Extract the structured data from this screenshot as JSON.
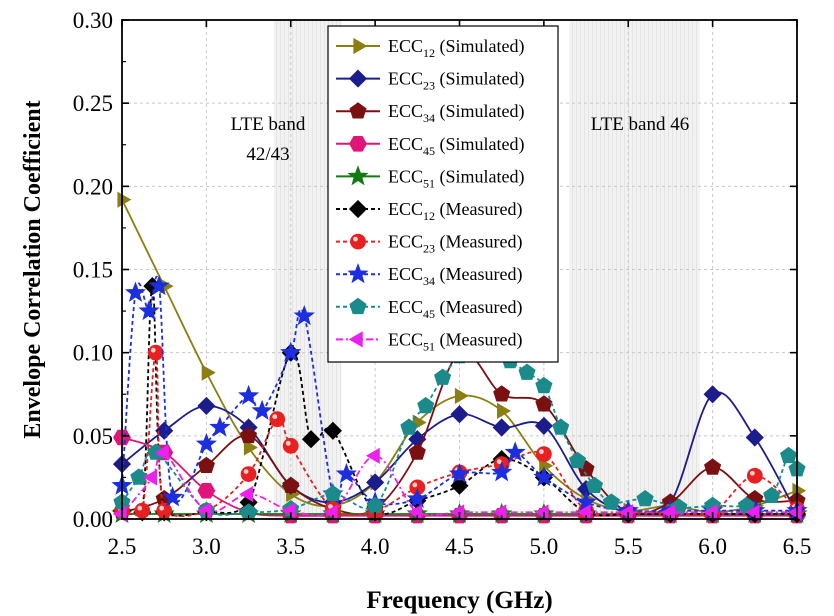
{
  "chart_data": {
    "type": "line",
    "title": "",
    "xlabel": "Frequency (GHz)",
    "ylabel": "Envelope Correlation Coefficient",
    "xlim": [
      2.5,
      6.5
    ],
    "ylim": [
      0.0,
      0.3
    ],
    "xticks": [
      "2.5",
      "3.0",
      "3.5",
      "4.0",
      "4.5",
      "5.0",
      "5.5",
      "6.0",
      "6.5"
    ],
    "yticks": [
      "0.00",
      "0.05",
      "0.10",
      "0.15",
      "0.20",
      "0.25",
      "0.30"
    ],
    "grid": true,
    "legend_position": "top-center",
    "bands": [
      {
        "label_line1": "LTE band",
        "label_line2": "42/43",
        "from": 3.4,
        "to": 3.8
      },
      {
        "label_line1": "LTE band 46",
        "label_line2": "",
        "from": 5.15,
        "to": 5.925
      }
    ],
    "series": [
      {
        "name_main": "ECC",
        "name_sub": "12",
        "name_suffix": " (Simulated)",
        "color": "#8a7f10",
        "dash": "solid",
        "marker": "triangle-right",
        "x": [
          2.5,
          2.75,
          3.0,
          3.25,
          3.5,
          3.75,
          4.0,
          4.25,
          4.5,
          4.75,
          5.0,
          5.25,
          5.5,
          5.75,
          6.0,
          6.25,
          6.5
        ],
        "y": [
          0.192,
          0.14,
          0.088,
          0.043,
          0.015,
          0.008,
          0.022,
          0.058,
          0.074,
          0.065,
          0.032,
          0.012,
          0.005,
          0.008,
          0.004,
          0.008,
          0.017
        ]
      },
      {
        "name_main": "ECC",
        "name_sub": "23",
        "name_suffix": " (Simulated)",
        "color": "#1c1c8c",
        "dash": "solid",
        "marker": "diamond",
        "x": [
          2.5,
          2.75,
          3.0,
          3.25,
          3.5,
          3.75,
          4.0,
          4.25,
          4.5,
          4.75,
          5.0,
          5.25,
          5.5,
          5.75,
          6.0,
          6.25,
          6.5
        ],
        "y": [
          0.033,
          0.053,
          0.068,
          0.055,
          0.02,
          0.01,
          0.022,
          0.048,
          0.063,
          0.055,
          0.056,
          0.018,
          0.004,
          0.01,
          0.075,
          0.049,
          0.003
        ]
      },
      {
        "name_main": "ECC",
        "name_sub": "34",
        "name_suffix": " (Simulated)",
        "color": "#7a1010",
        "dash": "solid",
        "marker": "pentagon",
        "x": [
          2.5,
          2.75,
          3.0,
          3.25,
          3.5,
          3.75,
          4.0,
          4.25,
          4.5,
          4.75,
          5.0,
          5.25,
          5.5,
          5.75,
          6.0,
          6.25,
          6.5
        ],
        "y": [
          0.004,
          0.012,
          0.032,
          0.05,
          0.02,
          0.006,
          0.006,
          0.04,
          0.1,
          0.075,
          0.069,
          0.03,
          0.004,
          0.01,
          0.031,
          0.012,
          0.011
        ]
      },
      {
        "name_main": "ECC",
        "name_sub": "45",
        "name_suffix": " (Simulated)",
        "color": "#e0157a",
        "dash": "solid",
        "marker": "hexagon",
        "x": [
          2.5,
          2.75,
          3.0,
          3.25,
          3.5,
          3.75,
          4.0,
          4.25,
          4.5,
          4.75,
          5.0,
          5.25,
          5.5,
          5.75,
          6.0,
          6.25,
          6.5
        ],
        "y": [
          0.049,
          0.04,
          0.017,
          0.004,
          0.002,
          0.002,
          0.002,
          0.002,
          0.002,
          0.002,
          0.002,
          0.002,
          0.002,
          0.002,
          0.002,
          0.002,
          0.002
        ]
      },
      {
        "name_main": "ECC",
        "name_sub": "51",
        "name_suffix": " (Simulated)",
        "color": "#127a12",
        "dash": "solid",
        "marker": "star",
        "x": [
          2.5,
          2.75,
          3.0,
          3.25,
          3.5,
          3.75,
          4.0,
          4.25,
          4.5,
          4.75,
          5.0,
          5.25,
          5.5,
          5.75,
          6.0,
          6.25,
          6.5
        ],
        "y": [
          0.003,
          0.003,
          0.003,
          0.003,
          0.003,
          0.003,
          0.003,
          0.003,
          0.003,
          0.003,
          0.003,
          0.003,
          0.003,
          0.003,
          0.003,
          0.003,
          0.003
        ]
      },
      {
        "name_main": "ECC",
        "name_sub": "12",
        "name_suffix": " (Measured)",
        "color": "#000000",
        "dash": "dash",
        "marker": "diamond",
        "x": [
          2.5,
          2.62,
          2.68,
          2.75,
          3.0,
          3.25,
          3.5,
          3.62,
          3.75,
          4.0,
          4.25,
          4.5,
          4.75,
          5.0,
          5.25,
          5.5,
          5.75,
          6.0,
          6.25,
          6.5
        ],
        "y": [
          0.005,
          0.004,
          0.14,
          0.004,
          0.004,
          0.01,
          0.1,
          0.048,
          0.053,
          0.004,
          0.011,
          0.02,
          0.036,
          0.025,
          0.004,
          0.003,
          0.003,
          0.003,
          0.003,
          0.003
        ]
      },
      {
        "name_main": "ECC",
        "name_sub": "23",
        "name_suffix": " (Measured)",
        "color": "#e82020",
        "dash": "dash",
        "marker": "sphere",
        "x": [
          2.5,
          2.62,
          2.7,
          2.75,
          3.0,
          3.25,
          3.42,
          3.5,
          3.75,
          4.0,
          4.25,
          4.5,
          4.75,
          5.0,
          5.25,
          5.5,
          5.75,
          6.0,
          6.25,
          6.5
        ],
        "y": [
          0.005,
          0.005,
          0.1,
          0.005,
          0.005,
          0.027,
          0.06,
          0.044,
          0.006,
          0.005,
          0.019,
          0.028,
          0.033,
          0.039,
          0.005,
          0.004,
          0.004,
          0.004,
          0.026,
          0.006
        ]
      },
      {
        "name_main": "ECC",
        "name_sub": "34",
        "name_suffix": " (Measured)",
        "color": "#1c2ee0",
        "dash": "dash",
        "marker": "star",
        "x": [
          2.5,
          2.58,
          2.66,
          2.72,
          2.8,
          3.0,
          3.08,
          3.25,
          3.33,
          3.5,
          3.58,
          3.75,
          3.83,
          4.0,
          4.25,
          4.5,
          4.75,
          4.83,
          5.0,
          5.25,
          5.5,
          5.75,
          6.0,
          6.25,
          6.5
        ],
        "y": [
          0.02,
          0.136,
          0.125,
          0.14,
          0.013,
          0.045,
          0.055,
          0.074,
          0.065,
          0.1,
          0.122,
          0.015,
          0.027,
          0.01,
          0.012,
          0.027,
          0.028,
          0.04,
          0.025,
          0.01,
          0.005,
          0.005,
          0.005,
          0.005,
          0.005
        ]
      },
      {
        "name_main": "ECC",
        "name_sub": "45",
        "name_suffix": " (Measured)",
        "color": "#1a8a8a",
        "dash": "dash",
        "marker": "pentagon",
        "x": [
          2.5,
          2.6,
          2.7,
          3.0,
          3.25,
          3.5,
          3.75,
          4.0,
          4.2,
          4.3,
          4.4,
          4.5,
          4.6,
          4.7,
          4.8,
          4.9,
          5.0,
          5.1,
          5.2,
          5.3,
          5.4,
          5.6,
          5.8,
          6.0,
          6.2,
          6.35,
          6.45,
          6.5
        ],
        "y": [
          0.01,
          0.025,
          0.04,
          0.005,
          0.004,
          0.006,
          0.015,
          0.008,
          0.055,
          0.068,
          0.085,
          0.098,
          0.103,
          0.102,
          0.095,
          0.088,
          0.08,
          0.055,
          0.035,
          0.02,
          0.01,
          0.012,
          0.007,
          0.008,
          0.008,
          0.014,
          0.038,
          0.03
        ]
      },
      {
        "name_main": "ECC",
        "name_sub": "51",
        "name_suffix": "  (Measured)",
        "color": "#ee20ee",
        "dash": "dashdot",
        "marker": "triangle-left",
        "x": [
          2.5,
          2.68,
          2.75,
          3.0,
          3.25,
          3.5,
          3.75,
          4.0,
          4.25,
          4.5,
          4.75,
          5.0,
          5.25,
          5.5,
          5.75,
          6.0,
          6.25,
          6.5
        ],
        "y": [
          0.003,
          0.025,
          0.04,
          0.005,
          0.015,
          0.005,
          0.004,
          0.038,
          0.004,
          0.004,
          0.004,
          0.004,
          0.004,
          0.004,
          0.004,
          0.004,
          0.004,
          0.004
        ]
      }
    ]
  }
}
